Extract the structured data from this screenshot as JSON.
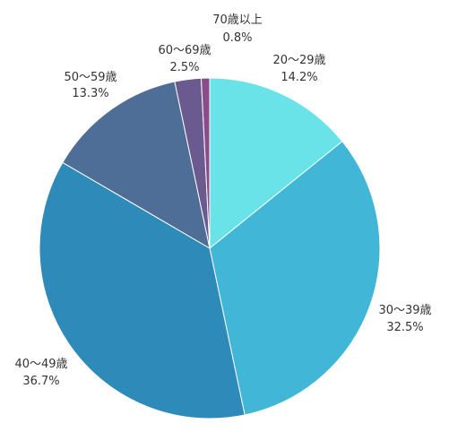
{
  "chart_data": {
    "type": "pie",
    "title": "",
    "slices": [
      {
        "label": "20〜29歳",
        "percent_label": "14.2%",
        "value": 14.2,
        "color": "#69E3E7"
      },
      {
        "label": "30〜39歳",
        "percent_label": "32.5%",
        "value": 32.5,
        "color": "#42B6D6"
      },
      {
        "label": "40〜49歳",
        "percent_label": "36.7%",
        "value": 36.7,
        "color": "#2E8AB9"
      },
      {
        "label": "50〜59歳",
        "percent_label": "13.3%",
        "value": 13.3,
        "color": "#4F6E97"
      },
      {
        "label": "60〜69歳",
        "percent_label": "2.5%",
        "value": 2.5,
        "color": "#6A5A8F"
      },
      {
        "label": "70歳以上",
        "percent_label": "0.8%",
        "value": 0.8,
        "color": "#8B4D8A"
      }
    ]
  }
}
